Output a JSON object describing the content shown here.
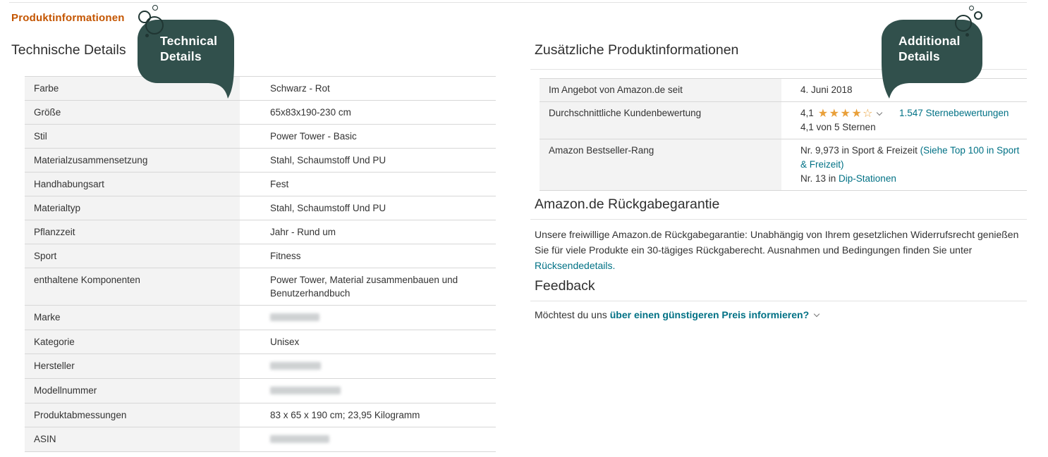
{
  "header": {
    "section_label": "Produktinformationen"
  },
  "technical": {
    "heading": "Technische Details",
    "rows": [
      {
        "label": "Farbe",
        "value": "Schwarz - Rot"
      },
      {
        "label": "Größe",
        "value": "65x83x190-230 cm"
      },
      {
        "label": "Stil",
        "value": "Power Tower - Basic"
      },
      {
        "label": "Materialzusammensetzung",
        "value": "Stahl, Schaumstoff Und PU"
      },
      {
        "label": "Handhabungsart",
        "value": "Fest"
      },
      {
        "label": "Materialtyp",
        "value": "Stahl, Schaumstoff Und PU"
      },
      {
        "label": "Pflanzzeit",
        "value": "Jahr - Rund um"
      },
      {
        "label": "Sport",
        "value": "Fitness"
      },
      {
        "label": "enthaltene Komponenten",
        "value": "Power Tower, Material zusammenbauen und Benutzerhandbuch"
      },
      {
        "label": "Marke",
        "value": "",
        "blurred": true,
        "blur_width": 70
      },
      {
        "label": "Kategorie",
        "value": "Unisex"
      },
      {
        "label": "Hersteller",
        "value": "",
        "blurred": true,
        "blur_width": 72
      },
      {
        "label": "Modellnummer",
        "value": "",
        "blurred": true,
        "blur_width": 100
      },
      {
        "label": "Produktabmessungen",
        "value": "83 x 65 x 190 cm; 23,95 Kilogramm"
      },
      {
        "label": "ASIN",
        "value": "",
        "blurred": true,
        "blur_width": 84
      }
    ]
  },
  "additional": {
    "heading": "Zusätzliche Produktinformationen",
    "rows": [
      {
        "type": "text",
        "label": "Im Angebot von Amazon.de seit",
        "value": "4. Juni 2018"
      },
      {
        "type": "rating",
        "label": "Durchschnittliche Kundenbewertung",
        "score": "4,1",
        "stars_filled": 4,
        "stars_total": 5,
        "expander_icon": "chevron-down",
        "reviews_link": "1.547 Sternebewertungen",
        "subtext": "4,1 von 5 Sternen"
      },
      {
        "type": "rich",
        "label": "Amazon Bestseller-Rang",
        "lines": [
          {
            "segments": [
              {
                "text": "Nr. 9,973 in Sport & Freizeit "
              },
              {
                "text": "(Siehe Top 100 in Sport & Freizeit)",
                "link": true
              }
            ]
          },
          {
            "segments": [
              {
                "text": "Nr. 13 in "
              },
              {
                "text": "Dip-Stationen",
                "link": true
              }
            ]
          }
        ]
      }
    ]
  },
  "returns": {
    "heading": "Amazon.de Rückgabegarantie",
    "text": "Unsere freiwillige Amazon.de Rückgabegarantie: Unabhängig von Ihrem gesetzlichen Widerrufsrecht genießen Sie für viele Produkte ein 30-tägiges Rückgaberecht. Ausnahmen und Bedingungen finden Sie unter ",
    "link": "Rücksendedetails."
  },
  "feedback": {
    "heading": "Feedback",
    "prefix": "Möchtest du uns",
    "link": "über einen günstigeren Preis informieren?",
    "expander_icon": "chevron-down"
  },
  "callouts": {
    "technical": {
      "line1": "Technical",
      "line2": "Details"
    },
    "additional": {
      "line1": "Additional",
      "line2": "Details"
    }
  },
  "colors": {
    "accent_orange": "#c45500",
    "link_teal": "#007185",
    "star_orange": "#e9a03a",
    "callout_bg": "#31504c",
    "row_label_bg": "#f3f3f3",
    "divider": "#d7d7d7",
    "text": "#333333"
  }
}
